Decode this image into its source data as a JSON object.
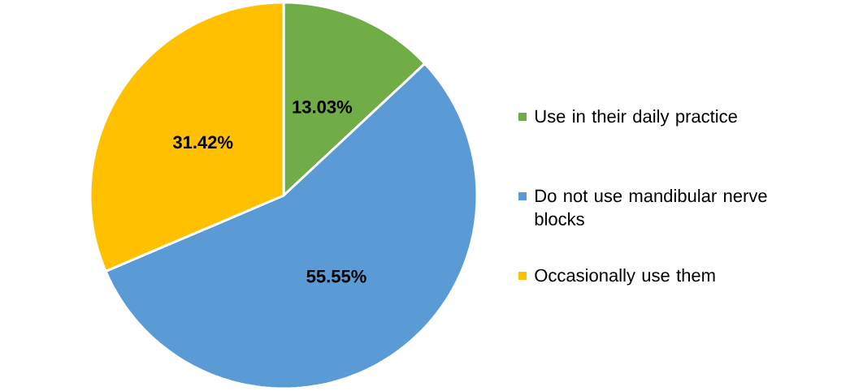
{
  "chart_data": {
    "type": "pie",
    "categories": [
      "Use in their daily practice",
      "Do not use mandibular nerve blocks",
      "Occasionally use them"
    ],
    "values": [
      13.03,
      55.55,
      31.42
    ],
    "colors": [
      "#70ad47",
      "#5b9bd5",
      "#ffc000"
    ],
    "value_labels": [
      "13.03%",
      "55.55%",
      "31.42%"
    ],
    "legend": "right"
  }
}
